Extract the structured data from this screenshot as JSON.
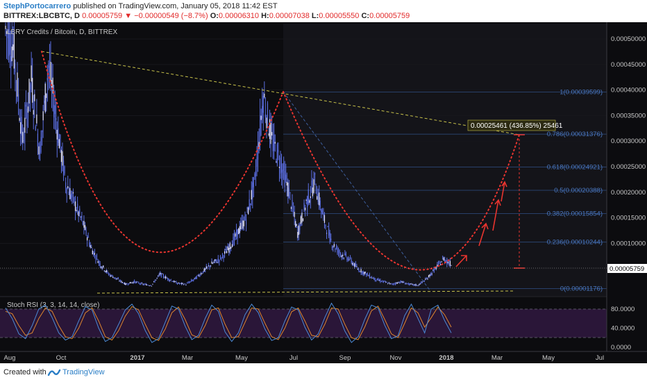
{
  "header": {
    "author": "StephPortocarrero",
    "published": "published on TradingView.com, January 05, 2018 11:42 EST",
    "symbol": "BITTREX:LBCBTC, D",
    "last": "0.00005759",
    "change": "−0.00000549 (−8.7%)",
    "o_label": "O:",
    "o_value": "0.00006310",
    "h_label": "H:",
    "h_value": "0.00007038",
    "l_label": "L:",
    "l_value": "0.00005550",
    "c_label": "C:",
    "c_value": "0.00005759"
  },
  "legend": {
    "title": "LBRY Credits / Bitcoin, D, BITTREX"
  },
  "footer": {
    "created_with": "Created with",
    "brand": "TradingView"
  },
  "colors": {
    "background": "#0c0c0f",
    "candles": "#5b6ee1",
    "cup_curve": "#e8342f",
    "trend_line": "#c8c24a",
    "fib_text": "#4a78c2",
    "rsi_fill": "#2a1638",
    "rsi_k": "#4c8bd8",
    "rsi_d": "#e0862e"
  },
  "chart_data": [
    {
      "type": "candlestick",
      "x_ticks": [
        "Aug",
        "Oct",
        "2017",
        "Mar",
        "May",
        "Jul",
        "Sep",
        "Nov",
        "2018",
        "Mar",
        "May",
        "Jul"
      ],
      "y_ticks": [
        "0.00050000",
        "0.00045000",
        "0.00040000",
        "0.00035000",
        "0.00030000",
        "0.00025000",
        "0.00020000",
        "0.00015000",
        "0.00010000",
        "0.00005000"
      ],
      "ylim": [
        0,
        0.00053
      ],
      "last_price_label": "0.00005759",
      "price_path": [
        [
          0.00052,
          0.00048
        ],
        [
          0.00047,
          0.0003
        ],
        [
          0.0003,
          0.00042
        ],
        [
          0.00042,
          0.00028
        ],
        [
          0.00028,
          0.00045
        ],
        [
          0.00045,
          0.00033
        ],
        [
          0.00033,
          0.00022
        ],
        [
          0.00022,
          0.00018
        ],
        [
          0.00018,
          0.00014
        ],
        [
          0.00014,
          9e-05
        ],
        [
          9e-05,
          6e-05
        ],
        [
          6e-05,
          4e-05
        ],
        [
          4e-05,
          3e-05
        ],
        [
          3e-05,
          2e-05
        ],
        [
          2e-05,
          2.5e-05
        ],
        [
          2.5e-05,
          2e-05
        ],
        [
          2e-05,
          1.8e-05
        ],
        [
          1.8e-05,
          4e-05
        ],
        [
          4e-05,
          3e-05
        ],
        [
          3e-05,
          2.2e-05
        ],
        [
          2.2e-05,
          2e-05
        ],
        [
          2e-05,
          3e-05
        ],
        [
          3e-05,
          4.5e-05
        ],
        [
          4.5e-05,
          6e-05
        ],
        [
          6e-05,
          7e-05
        ],
        [
          7e-05,
          9e-05
        ],
        [
          9e-05,
          0.00012
        ],
        [
          0.00012,
          0.00015
        ],
        [
          0.00015,
          0.00022
        ],
        [
          0.00022,
          0.00039
        ],
        [
          0.00039,
          0.0003
        ],
        [
          0.0003,
          0.00026
        ],
        [
          0.00026,
          0.0002
        ],
        [
          0.0002,
          0.00012
        ],
        [
          0.00012,
          0.00018
        ],
        [
          0.00018,
          0.00022
        ],
        [
          0.00022,
          0.00015
        ],
        [
          0.00015,
          0.0001
        ],
        [
          0.0001,
          8e-05
        ],
        [
          8e-05,
          7e-05
        ],
        [
          7e-05,
          5e-05
        ],
        [
          5e-05,
          4e-05
        ],
        [
          4e-05,
          3e-05
        ],
        [
          3e-05,
          2.5e-05
        ],
        [
          2.5e-05,
          2e-05
        ],
        [
          2e-05,
          2.5e-05
        ],
        [
          2.5e-05,
          2e-05
        ],
        [
          2e-05,
          1.8e-05
        ],
        [
          1.8e-05,
          3e-05
        ],
        [
          3e-05,
          5e-05
        ],
        [
          5e-05,
          7e-05
        ],
        [
          7e-05,
          5.759e-05
        ]
      ],
      "fib_levels": [
        {
          "label": "1(0.00039599)",
          "value": 0.00039599
        },
        {
          "label": "0.786(0.00031376)",
          "value": 0.00031376
        },
        {
          "label": "0.618(0.00024921)",
          "value": 0.00024921
        },
        {
          "label": "0.5(0.00020388)",
          "value": 0.00020388
        },
        {
          "label": "0.382(0.00015854)",
          "value": 0.00015854
        },
        {
          "label": "0.236(0.00010244)",
          "value": 0.00010244
        },
        {
          "label": "0(0.00001176)",
          "value": 1.176e-05
        }
      ],
      "measure_label": "0.00025461 (436.85%) 25461"
    },
    {
      "type": "line",
      "title": "Stoch RSI (3, 3, 14, 14, close)",
      "y_ticks": [
        "80.0000",
        "40.0000",
        "0.0000"
      ],
      "ylim": [
        0,
        100
      ],
      "bands": [
        80,
        20
      ],
      "k": [
        82,
        60,
        28,
        18,
        45,
        80,
        88,
        62,
        30,
        15,
        22,
        55,
        85,
        78,
        40,
        12,
        20,
        48,
        78,
        90,
        70,
        35,
        10,
        18,
        52,
        86,
        80,
        44,
        16,
        25,
        60,
        88,
        75,
        32,
        12,
        30,
        68,
        90,
        72,
        38,
        14,
        20,
        55,
        84,
        78,
        42,
        15,
        28,
        62,
        92,
        70,
        34,
        10,
        22,
        58,
        88,
        82,
        46,
        18,
        24,
        66,
        90,
        60,
        30,
        80,
        88,
        56,
        30
      ],
      "d": [
        75,
        70,
        45,
        25,
        30,
        60,
        82,
        75,
        45,
        22,
        18,
        40,
        72,
        82,
        55,
        22,
        15,
        35,
        65,
        85,
        78,
        48,
        20,
        14,
        38,
        72,
        84,
        58,
        26,
        20,
        45,
        78,
        82,
        48,
        20,
        22,
        52,
        82,
        80,
        50,
        22,
        16,
        40,
        74,
        82,
        55,
        25,
        22,
        48,
        82,
        80,
        48,
        20,
        16,
        42,
        76,
        86,
        58,
        28,
        20,
        50,
        82,
        72,
        42,
        62,
        84,
        68,
        42
      ]
    }
  ]
}
